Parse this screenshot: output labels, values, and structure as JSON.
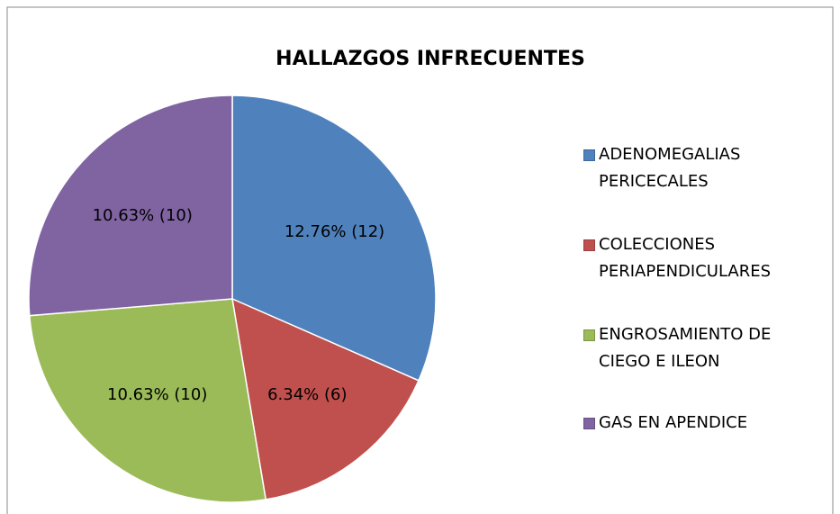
{
  "chart_data": {
    "type": "pie",
    "title": "HALLAZGOS INFRECUENTES",
    "categories": [
      "ADENOMEGALIAS PERICECALES",
      "COLECCIONES PERIAPENDICULARES",
      "ENGROSAMIENTO DE CIEGO E ILEON",
      "GAS EN APENDICE"
    ],
    "values": [
      12,
      6,
      10,
      10
    ],
    "value_labels": [
      "12.76%  (12)",
      "6.34% (6)",
      "10.63% (10)",
      "10.63% (10)"
    ],
    "colors": [
      "#4f81bd",
      "#c0504d",
      "#9bbb59",
      "#8064a2"
    ],
    "legend": "right"
  }
}
